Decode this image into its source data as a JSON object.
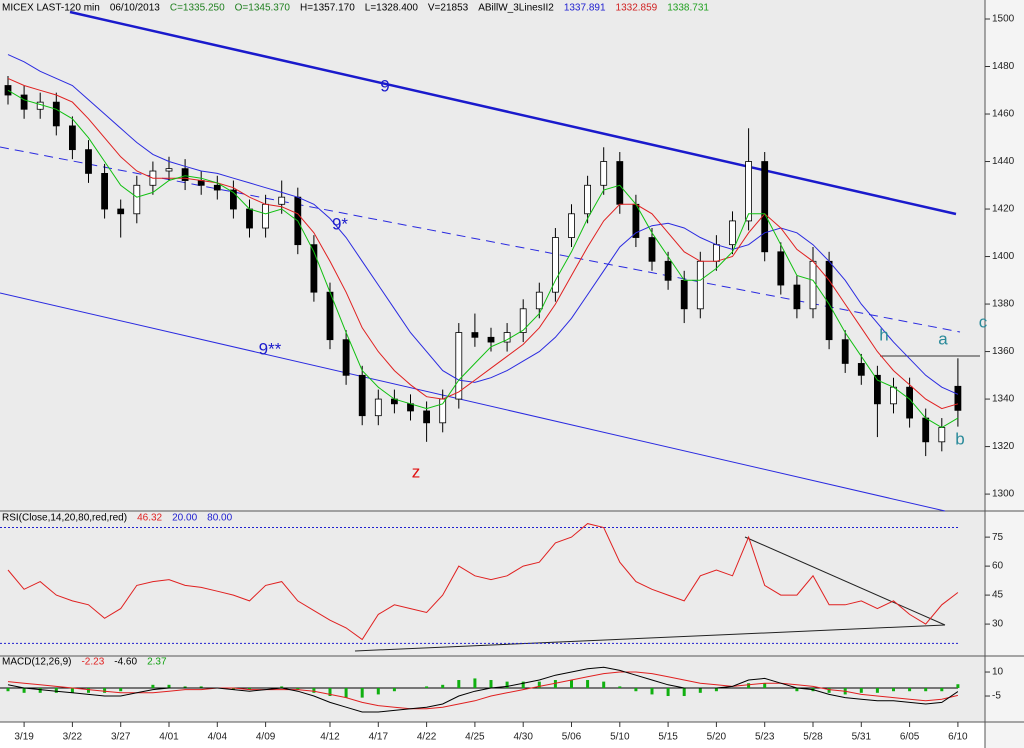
{
  "chart_data": [
    {
      "type": "candlestick",
      "header": [
        {
          "text": "MICEX LAST-120 min",
          "color": "#000000"
        },
        {
          "text": "06/10/2013",
          "color": "#000000"
        },
        {
          "text": "C=1335.250",
          "color": "#208020"
        },
        {
          "text": "O=1345.370",
          "color": "#208020"
        },
        {
          "text": "H=1357.170",
          "color": "#000000"
        },
        {
          "text": "L=1328.400",
          "color": "#000000"
        },
        {
          "text": "V=21853",
          "color": "#000000"
        },
        {
          "text": "ABillW_3LinesII2",
          "color": "#000000"
        },
        {
          "text": "1337.891",
          "color": "#2020d0"
        },
        {
          "text": "1332.859",
          "color": "#d02020"
        },
        {
          "text": "1338.731",
          "color": "#20a020"
        }
      ],
      "ylim": [
        1293.3,
        1508
      ],
      "yticks": [
        1300,
        1320,
        1340,
        1360,
        1380,
        1400,
        1420,
        1440,
        1460,
        1480,
        1500
      ],
      "open": [
        1472,
        1468,
        1462,
        1465,
        1455,
        1445,
        1435,
        1420,
        1418,
        1430,
        1436,
        1437,
        1432,
        1430,
        1428,
        1420,
        1412,
        1422,
        1425,
        1405,
        1385,
        1365,
        1350,
        1333,
        1340,
        1338,
        1335,
        1330,
        1340,
        1368,
        1366,
        1364,
        1368,
        1378,
        1385,
        1408,
        1418,
        1430,
        1440,
        1422,
        1408,
        1398,
        1390,
        1378,
        1398,
        1405,
        1415,
        1440,
        1402,
        1388,
        1378,
        1398,
        1365,
        1355,
        1350,
        1338,
        1345,
        1332,
        1322,
        1345.37
      ],
      "high": [
        1476,
        1472,
        1469,
        1469,
        1459,
        1449,
        1439,
        1424,
        1434,
        1440,
        1442,
        1441,
        1436,
        1434,
        1432,
        1424,
        1426,
        1432,
        1429,
        1409,
        1389,
        1369,
        1354,
        1344,
        1344,
        1342,
        1339,
        1344,
        1372,
        1376,
        1370,
        1372,
        1382,
        1389,
        1412,
        1422,
        1434,
        1446,
        1444,
        1426,
        1412,
        1402,
        1394,
        1402,
        1409,
        1419,
        1454,
        1444,
        1406,
        1392,
        1404,
        1402,
        1369,
        1359,
        1354,
        1349,
        1349,
        1336,
        1332,
        1357.17
      ],
      "low": [
        1464,
        1458,
        1458,
        1451,
        1441,
        1431,
        1416,
        1408,
        1414,
        1426,
        1432,
        1428,
        1426,
        1424,
        1416,
        1408,
        1408,
        1418,
        1401,
        1381,
        1361,
        1346,
        1329,
        1329,
        1334,
        1331,
        1322,
        1326,
        1336,
        1362,
        1360,
        1360,
        1364,
        1374,
        1381,
        1404,
        1414,
        1426,
        1418,
        1404,
        1394,
        1386,
        1372,
        1374,
        1394,
        1401,
        1411,
        1398,
        1384,
        1374,
        1374,
        1361,
        1351,
        1346,
        1324,
        1334,
        1328,
        1316,
        1318,
        1328.4
      ],
      "close": [
        1468,
        1462,
        1465,
        1455,
        1445,
        1435,
        1420,
        1418,
        1430,
        1436,
        1437,
        1432,
        1430,
        1428,
        1420,
        1412,
        1422,
        1425,
        1405,
        1385,
        1365,
        1350,
        1333,
        1340,
        1338,
        1335,
        1330,
        1340,
        1368,
        1366,
        1364,
        1368,
        1378,
        1385,
        1408,
        1418,
        1430,
        1440,
        1422,
        1408,
        1398,
        1390,
        1378,
        1398,
        1405,
        1415,
        1440,
        1402,
        1388,
        1378,
        1398,
        1365,
        1355,
        1350,
        1338,
        1345,
        1332,
        1322,
        1328,
        1335.25
      ],
      "series": [
        {
          "color": "#2a2ae0",
          "values": [
            1485,
            1482,
            1478,
            1475,
            1472,
            1466,
            1460,
            1454,
            1448,
            1443,
            1440,
            1438,
            1436,
            1435,
            1433,
            1431,
            1429,
            1427,
            1425,
            1422,
            1416,
            1408,
            1398,
            1388,
            1378,
            1368,
            1360,
            1352,
            1348,
            1347,
            1349,
            1352,
            1356,
            1360,
            1366,
            1374,
            1384,
            1394,
            1404,
            1410,
            1413,
            1414,
            1412,
            1408,
            1405,
            1403,
            1405,
            1410,
            1412,
            1410,
            1405,
            1398,
            1390,
            1380,
            1372,
            1364,
            1357,
            1350,
            1345,
            1342
          ]
        },
        {
          "color": "#e02020",
          "values": [
            1475,
            1472,
            1470,
            1468,
            1465,
            1458,
            1450,
            1442,
            1436,
            1433,
            1433,
            1433,
            1432,
            1431,
            1429,
            1425,
            1422,
            1421,
            1418,
            1410,
            1398,
            1385,
            1370,
            1360,
            1352,
            1346,
            1341,
            1340,
            1343,
            1348,
            1353,
            1358,
            1363,
            1370,
            1380,
            1392,
            1404,
            1415,
            1422,
            1422,
            1418,
            1410,
            1402,
            1398,
            1398,
            1400,
            1410,
            1418,
            1412,
            1403,
            1398,
            1390,
            1380,
            1370,
            1360,
            1352,
            1346,
            1340,
            1336,
            1338
          ]
        },
        {
          "color": "#10c010",
          "values": [
            1470,
            1466,
            1464,
            1462,
            1458,
            1450,
            1440,
            1430,
            1425,
            1427,
            1432,
            1434,
            1433,
            1431,
            1427,
            1420,
            1418,
            1420,
            1415,
            1402,
            1385,
            1368,
            1352,
            1345,
            1340,
            1338,
            1336,
            1338,
            1348,
            1355,
            1362,
            1365,
            1369,
            1376,
            1390,
            1402,
            1416,
            1428,
            1430,
            1422,
            1410,
            1400,
            1390,
            1390,
            1395,
            1402,
            1418,
            1418,
            1405,
            1392,
            1390,
            1380,
            1368,
            1358,
            1348,
            1345,
            1340,
            1332,
            1328,
            1332
          ]
        }
      ],
      "annotations": [
        {
          "text": "9",
          "color": "#1a1acc"
        },
        {
          "text": "9*",
          "color": "#1a1acc"
        },
        {
          "text": "9**",
          "color": "#1a1acc"
        },
        {
          "text": "z",
          "color": "#e01010"
        },
        {
          "text": "h",
          "color": "#2a8a9a"
        },
        {
          "text": "a",
          "color": "#2a8a9a"
        },
        {
          "text": "c",
          "color": "#2a8a9a"
        },
        {
          "text": "b",
          "color": "#2a8a9a"
        }
      ]
    },
    {
      "type": "line",
      "header": [
        {
          "text": "RSI(Close,14,20,80,red,red)",
          "color": "#000000"
        },
        {
          "text": "46.32",
          "color": "#e02020"
        },
        {
          "text": "20.00",
          "color": "#2020d0"
        },
        {
          "text": "80.00",
          "color": "#2020d0"
        }
      ],
      "ylim": [
        14,
        88
      ],
      "yticks": [
        30,
        45,
        60,
        75
      ],
      "levels": [
        20,
        80
      ],
      "level_color": "#2020d0",
      "series": [
        {
          "color": "#e02020",
          "values": [
            58,
            48,
            52,
            45,
            42,
            40,
            33,
            38,
            50,
            52,
            53,
            50,
            49,
            47,
            45,
            42,
            50,
            52,
            42,
            37,
            32,
            28,
            22,
            35,
            40,
            38,
            36,
            45,
            60,
            55,
            53,
            55,
            60,
            62,
            72,
            75,
            82,
            80,
            62,
            52,
            48,
            45,
            42,
            55,
            58,
            55,
            75,
            50,
            45,
            45,
            55,
            40,
            40,
            42,
            38,
            42,
            35,
            30,
            40,
            46.32
          ]
        }
      ]
    },
    {
      "type": "line",
      "header": [
        {
          "text": "MACD(12,26,9)",
          "color": "#000000"
        },
        {
          "text": "-2.23",
          "color": "#e02020"
        },
        {
          "text": "-4.60",
          "color": "#000000"
        },
        {
          "text": "2.37",
          "color": "#10a010"
        }
      ],
      "ylim": [
        -21.25,
        19.4
      ],
      "yticks": [
        -5,
        10
      ],
      "levels": [
        0
      ],
      "level_color": "#000000",
      "categories": [
        null,
        "3/19",
        null,
        null,
        "3/22",
        null,
        null,
        "3/27",
        null,
        null,
        "4/01",
        null,
        null,
        "4/04",
        null,
        null,
        "4/09",
        null,
        null,
        null,
        "4/12",
        null,
        null,
        "4/17",
        null,
        null,
        "4/22",
        null,
        null,
        "4/25",
        null,
        null,
        "4/30",
        null,
        null,
        "5/06",
        null,
        null,
        "5/10",
        null,
        null,
        "5/15",
        null,
        null,
        "5/20",
        null,
        null,
        "5/23",
        null,
        null,
        "5/28",
        null,
        null,
        "5/31",
        null,
        null,
        "6/05",
        null,
        null,
        "6/10"
      ],
      "series": [
        {
          "color": "#10b010",
          "style": "bar",
          "values": [
            -2,
            -3,
            -3,
            -3,
            -3,
            -3,
            -3,
            -2,
            0,
            2,
            2,
            1,
            1,
            0,
            -1,
            -1,
            0,
            1,
            -1,
            -3,
            -5,
            -6,
            -6,
            -4,
            -2,
            0,
            1,
            2,
            5,
            6,
            5,
            4,
            4,
            4,
            5,
            5,
            5,
            4,
            1,
            -2,
            -4,
            -5,
            -5,
            -3,
            -2,
            0,
            3,
            3,
            0,
            -2,
            -2,
            -3,
            -4,
            -3,
            -3,
            -2,
            -2,
            -2,
            -2,
            2.37
          ]
        },
        {
          "color": "#e02020",
          "values": [
            4,
            3,
            2,
            1,
            0,
            -1,
            -2,
            -3,
            -3,
            -3,
            -2,
            -1,
            -1,
            0,
            0,
            -1,
            -1,
            -1,
            -1,
            -2,
            -4,
            -6,
            -9,
            -11,
            -12,
            -13,
            -13,
            -12,
            -10,
            -8,
            -5,
            -3,
            -1,
            1,
            3,
            5,
            7,
            9,
            10,
            10,
            9,
            7,
            5,
            3,
            2,
            1,
            2,
            3,
            3,
            2,
            1,
            -1,
            -2,
            -4,
            -5,
            -6,
            -7,
            -8,
            -7,
            -4.6
          ]
        },
        {
          "color": "#000000",
          "values": [
            2,
            0,
            -1,
            -2,
            -3,
            -4,
            -5,
            -5,
            -3,
            -1,
            0,
            0,
            0,
            0,
            -1,
            -2,
            -1,
            0,
            -2,
            -5,
            -9,
            -12,
            -15,
            -15,
            -14,
            -13,
            -12,
            -10,
            -5,
            -2,
            0,
            1,
            3,
            5,
            8,
            10,
            12,
            13,
            11,
            8,
            5,
            2,
            0,
            0,
            0,
            1,
            5,
            6,
            3,
            0,
            -1,
            -4,
            -6,
            -7,
            -8,
            -8,
            -9,
            -10,
            -9,
            -2.23
          ]
        }
      ]
    }
  ]
}
